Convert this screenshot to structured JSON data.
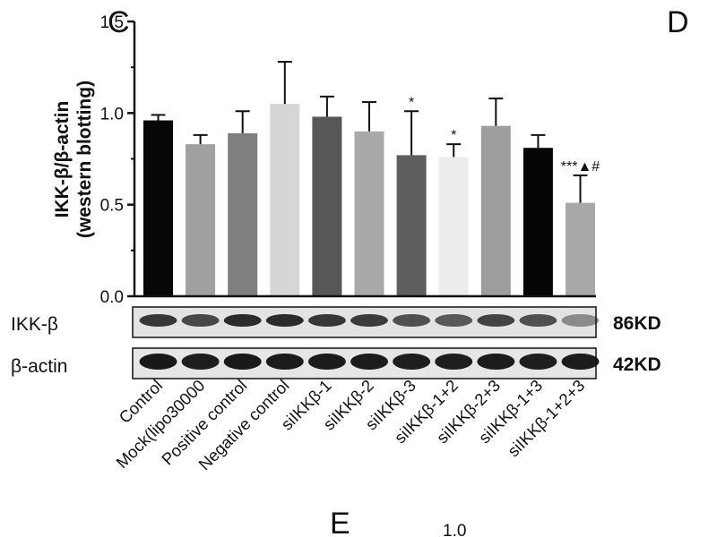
{
  "panel_labels": {
    "c": "C",
    "d": "D",
    "e": "E"
  },
  "bottom_partial_tick": "1.0",
  "blot": {
    "rows": [
      {
        "label": "IKK-β",
        "size": "86KD"
      },
      {
        "label": "β-actin",
        "size": "42KD"
      }
    ]
  },
  "chart_data": {
    "type": "bar",
    "ylabel": [
      "IKK-β/β-actin",
      "(western blotting)"
    ],
    "ylim": [
      0,
      1.5
    ],
    "yticks": [
      "0.0",
      "0.5",
      "1.0",
      "1.5"
    ],
    "categories": [
      "Control",
      "Mock(lipo30000",
      "Positive control",
      "Negative control",
      "siIKKβ-1",
      "siIKKβ-2",
      "siIKKβ-3",
      "siIKKβ-1+2",
      "siIKKβ-2+3",
      "siIKKβ-1+3",
      "siIKKβ-1+2+3"
    ],
    "values": [
      0.96,
      0.83,
      0.89,
      1.05,
      0.98,
      0.9,
      0.77,
      0.76,
      0.93,
      0.81,
      0.51
    ],
    "errors": [
      0.03,
      0.05,
      0.12,
      0.23,
      0.11,
      0.16,
      0.24,
      0.07,
      0.15,
      0.07,
      0.15
    ],
    "annotations": [
      "",
      "",
      "",
      "",
      "",
      "",
      "*",
      "*",
      "",
      "",
      "***▲#"
    ],
    "bar_colors": [
      "#070707",
      "#a0a0a0",
      "#7f7f7f",
      "#d6d6d6",
      "#575757",
      "#a9a9a9",
      "#5f5f5f",
      "#ececec",
      "#9d9d9d",
      "#050505",
      "#a8a8a8"
    ]
  }
}
